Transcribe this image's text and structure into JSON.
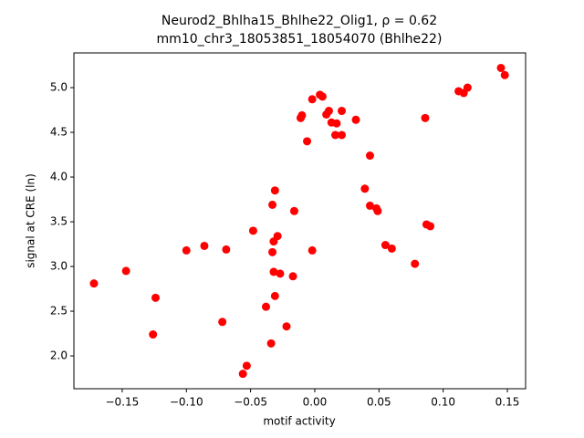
{
  "chart_data": {
    "type": "scatter",
    "title": "Neurod2_Bhlha15_Bhlhe22_Olig1, ρ = 0.62",
    "subtitle": "mm10_chr3_18053851_18054070 (Bhlhe22)",
    "x_label": "motif activity",
    "y_label": "signal at CRE (ln)",
    "xlim": [
      -0.1876,
      0.1642
    ],
    "ylim": [
      1.633,
      5.388
    ],
    "xticks": [
      {
        "value": -0.15,
        "label": "−0.15"
      },
      {
        "value": -0.1,
        "label": "−0.10"
      },
      {
        "value": -0.05,
        "label": "−0.05"
      },
      {
        "value": 0,
        "label": "0.00"
      },
      0.05,
      {
        "value": 0.1,
        "label": "0.10"
      },
      0.15
    ],
    "yticks": [
      {
        "value": 2,
        "label": "2.0"
      },
      2.5,
      {
        "value": 3,
        "label": "3.0"
      },
      3.5,
      {
        "value": 4,
        "label": "4.0"
      },
      4.5,
      {
        "value": 5,
        "label": "5.0"
      }
    ],
    "series": [
      {
        "color": "#ff0000",
        "x": [
          -0.172,
          -0.147,
          -0.124,
          -0.126,
          -0.1,
          -0.086,
          -0.069,
          -0.072,
          -0.056,
          -0.053,
          -0.048,
          -0.038,
          -0.034,
          -0.033,
          -0.031,
          -0.033,
          -0.032,
          -0.029,
          -0.032,
          -0.027,
          -0.031,
          -0.022,
          -0.017,
          -0.016,
          -0.002,
          -0.011,
          -0.01,
          -0.006,
          -0.002,
          0.004,
          0.006,
          0.009,
          0.011,
          0.013,
          0.017,
          0.016,
          0.021,
          0.021,
          0.032,
          0.043,
          0.039,
          0.043,
          0.048,
          0.049,
          0.055,
          0.06,
          0.078,
          0.086,
          0.087,
          0.09,
          0.112,
          0.116,
          0.119,
          0.145,
          0.148
        ],
        "values": [
          2.81,
          2.95,
          2.65,
          2.24,
          3.18,
          3.23,
          3.19,
          2.38,
          1.8,
          1.89,
          3.4,
          2.55,
          2.14,
          3.69,
          3.85,
          3.16,
          3.28,
          3.34,
          2.94,
          2.92,
          2.67,
          2.33,
          2.89,
          3.62,
          3.18,
          4.66,
          4.69,
          4.4,
          4.87,
          4.92,
          4.9,
          4.7,
          4.74,
          4.61,
          4.6,
          4.47,
          4.74,
          4.47,
          4.64,
          4.24,
          3.87,
          3.68,
          3.65,
          3.62,
          3.24,
          3.2,
          3.03,
          4.66,
          3.47,
          3.45,
          4.96,
          4.94,
          5.0,
          5.22,
          5.14
        ]
      }
    ]
  }
}
